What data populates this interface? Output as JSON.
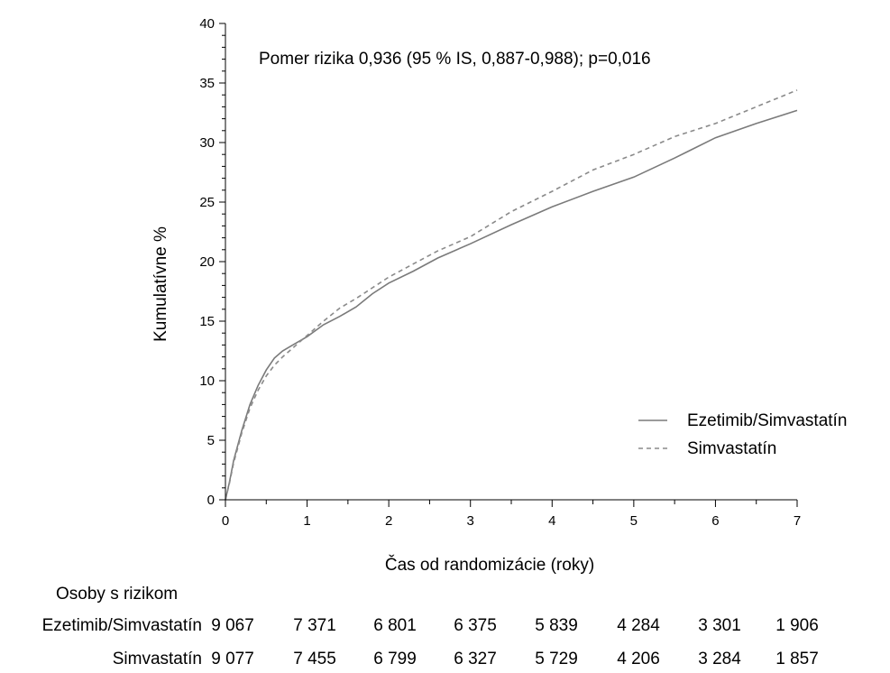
{
  "chart_data": {
    "type": "line",
    "annotation": "Pomer rizika 0,936 (95 % IS, 0,887-0,988); p=0,016",
    "xlabel": "Čas od randomizácie (roky)",
    "ylabel": "Kumulatívne %",
    "xlim": [
      0,
      7
    ],
    "ylim": [
      0,
      40
    ],
    "xticks": [
      "0",
      "1",
      "2",
      "3",
      "4",
      "5",
      "6",
      "7"
    ],
    "yticks": [
      "0",
      "5",
      "10",
      "15",
      "20",
      "25",
      "30",
      "35",
      "40"
    ],
    "legend_position": "lower-right",
    "series": [
      {
        "name": "Ezetimib/Simvastatín",
        "style": "solid",
        "color": "#7a7a7a",
        "points": [
          [
            0,
            0
          ],
          [
            0.05,
            1.5
          ],
          [
            0.1,
            3.3
          ],
          [
            0.2,
            5.8
          ],
          [
            0.3,
            8
          ],
          [
            0.4,
            9.6
          ],
          [
            0.5,
            10.9
          ],
          [
            0.6,
            11.9
          ],
          [
            0.7,
            12.5
          ],
          [
            0.8,
            12.9
          ],
          [
            0.9,
            13.3
          ],
          [
            1.0,
            13.7
          ],
          [
            1.2,
            14.7
          ],
          [
            1.4,
            15.4
          ],
          [
            1.6,
            16.2
          ],
          [
            1.8,
            17.3
          ],
          [
            2.0,
            18.2
          ],
          [
            2.3,
            19.2
          ],
          [
            2.6,
            20.3
          ],
          [
            3.0,
            21.5
          ],
          [
            3.5,
            23.1
          ],
          [
            4.0,
            24.6
          ],
          [
            4.5,
            25.9
          ],
          [
            5.0,
            27.1
          ],
          [
            5.5,
            28.7
          ],
          [
            6.0,
            30.4
          ],
          [
            6.5,
            31.6
          ],
          [
            7.0,
            32.7
          ]
        ]
      },
      {
        "name": "Simvastatín",
        "style": "dashed",
        "color": "#8a8a8a",
        "points": [
          [
            0,
            0
          ],
          [
            0.05,
            1.4
          ],
          [
            0.1,
            3.1
          ],
          [
            0.2,
            5.6
          ],
          [
            0.3,
            7.7
          ],
          [
            0.4,
            9.2
          ],
          [
            0.5,
            10.4
          ],
          [
            0.6,
            11.3
          ],
          [
            0.7,
            12.0
          ],
          [
            0.8,
            12.6
          ],
          [
            0.9,
            13.2
          ],
          [
            1.0,
            13.8
          ],
          [
            1.2,
            15.0
          ],
          [
            1.4,
            16.1
          ],
          [
            1.6,
            16.9
          ],
          [
            1.8,
            17.8
          ],
          [
            2.0,
            18.7
          ],
          [
            2.3,
            19.8
          ],
          [
            2.6,
            20.9
          ],
          [
            3.0,
            22.1
          ],
          [
            3.5,
            24.2
          ],
          [
            4.0,
            25.9
          ],
          [
            4.5,
            27.7
          ],
          [
            5.0,
            29.0
          ],
          [
            5.5,
            30.5
          ],
          [
            6.0,
            31.6
          ],
          [
            6.5,
            33.0
          ],
          [
            7.0,
            34.4
          ]
        ]
      }
    ]
  },
  "risk_table": {
    "header": "Osoby s rizikom",
    "rows": [
      {
        "label": "Ezetimib/Simvastatín",
        "values": [
          "9 067",
          "7 371",
          "6 801",
          "6 375",
          "5 839",
          "4 284",
          "3 301",
          "1 906"
        ]
      },
      {
        "label": "Simvastatín",
        "values": [
          "9 077",
          "7 455",
          "6 799",
          "6 327",
          "5 729",
          "4 206",
          "3 284",
          "1 857"
        ]
      }
    ]
  }
}
